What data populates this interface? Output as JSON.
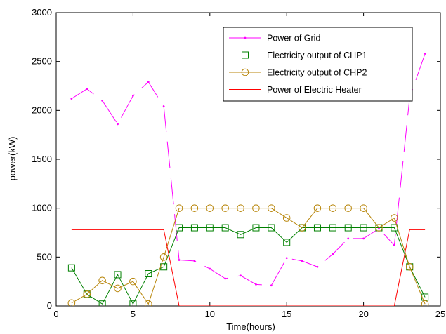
{
  "chart_data": {
    "type": "line",
    "title": "",
    "xlabel": "Time(hours)",
    "ylabel": "power(kW)",
    "xlim": [
      0,
      25
    ],
    "ylim": [
      0,
      3000
    ],
    "xticks": [
      0,
      5,
      10,
      15,
      20,
      25
    ],
    "yticks": [
      0,
      500,
      1000,
      1500,
      2000,
      2500,
      3000
    ],
    "grid": false,
    "legend_position": "top-right",
    "series": [
      {
        "name": "Power of Grid",
        "color": "#ff00ff",
        "line_style": "dashed",
        "marker": "point",
        "x": [
          1,
          2,
          3,
          4,
          5,
          6,
          7,
          8,
          9,
          10,
          11,
          12,
          13,
          14,
          15,
          16,
          17,
          18,
          19,
          20,
          21,
          22,
          23,
          24
        ],
        "y": [
          2120,
          2220,
          2100,
          1860,
          2150,
          2290,
          2040,
          470,
          460,
          380,
          280,
          310,
          220,
          210,
          490,
          460,
          400,
          530,
          690,
          690,
          790,
          620,
          2130,
          2580
        ]
      },
      {
        "name": "Electricity output of CHP1",
        "color": "#008000",
        "line_style": "solid",
        "marker": "square",
        "x": [
          1,
          2,
          3,
          4,
          5,
          6,
          7,
          8,
          9,
          10,
          11,
          12,
          13,
          14,
          15,
          16,
          17,
          18,
          19,
          20,
          21,
          22,
          23,
          24
        ],
        "y": [
          390,
          120,
          20,
          320,
          20,
          330,
          400,
          800,
          800,
          800,
          800,
          730,
          800,
          800,
          650,
          800,
          800,
          800,
          800,
          800,
          800,
          800,
          400,
          90
        ]
      },
      {
        "name": "Electricity output of CHP2",
        "color": "#b8860b",
        "line_style": "solid",
        "marker": "circle",
        "x": [
          1,
          2,
          3,
          4,
          5,
          6,
          7,
          8,
          9,
          10,
          11,
          12,
          13,
          14,
          15,
          16,
          17,
          18,
          19,
          20,
          21,
          22,
          23,
          24
        ],
        "y": [
          30,
          120,
          260,
          180,
          250,
          20,
          500,
          1000,
          1000,
          1000,
          1000,
          1000,
          1000,
          1000,
          900,
          800,
          1000,
          1000,
          1000,
          1000,
          800,
          900,
          400,
          20
        ]
      },
      {
        "name": "Power of Electric Heater",
        "color": "#ff0000",
        "line_style": "solid",
        "marker": "none",
        "x": [
          1,
          2,
          3,
          4,
          5,
          6,
          7,
          8,
          9,
          10,
          11,
          12,
          13,
          14,
          15,
          16,
          17,
          18,
          19,
          20,
          21,
          22,
          23,
          24
        ],
        "y": [
          780,
          780,
          780,
          780,
          780,
          780,
          780,
          0,
          0,
          0,
          0,
          0,
          0,
          0,
          0,
          0,
          0,
          0,
          0,
          0,
          0,
          0,
          780,
          780
        ]
      }
    ]
  }
}
